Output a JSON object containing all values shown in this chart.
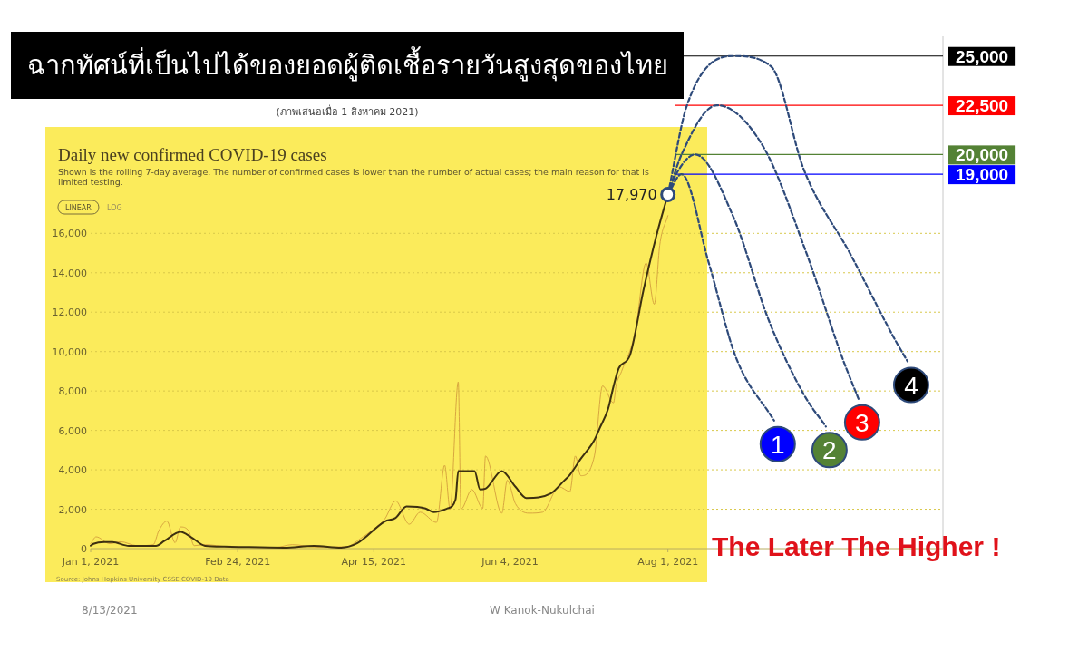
{
  "chart_data": {
    "type": "line",
    "title": "ฉากทัศน์ที่เป็นไปได้ของยอดผู้ติดเชื้อรายวันสูงสุดของไทย",
    "subtitle": "(ภาพเสนอเมื่อ 1 สิงหาคม 2021)",
    "xlim": [
      "2021-01-01",
      "2021-11-10"
    ],
    "xticks": [
      {
        "value": "2021-01-01",
        "label": "Jan 1, 2021"
      },
      {
        "value": "2021-02-24",
        "label": "Feb 24, 2021"
      },
      {
        "value": "2021-04-15",
        "label": "Apr 15, 2021"
      },
      {
        "value": "2021-06-04",
        "label": "Jun 4, 2021"
      },
      {
        "value": "2021-08-01",
        "label": "Aug 1, 2021"
      }
    ],
    "ylim": [
      0,
      26000
    ],
    "yticks": [
      0,
      {
        "value": 2000,
        "label": "2,000"
      },
      {
        "value": 4000,
        "label": "4,000"
      },
      {
        "value": 6000,
        "label": "6,000"
      },
      {
        "value": 8000,
        "label": "8,000"
      },
      {
        "value": 10000,
        "label": "10,000"
      },
      {
        "value": 12000,
        "label": "12,000"
      },
      {
        "value": 14000,
        "label": "14,000"
      },
      {
        "value": 16000,
        "label": "16,000"
      }
    ],
    "grid": "y",
    "series": [
      {
        "color": "#d8a640",
        "x": [
          "2021-01-01",
          "2021-01-03",
          "2021-01-08",
          "2021-01-12",
          "2021-01-18",
          "2021-01-24",
          "2021-01-26",
          "2021-01-29",
          "2021-02-01",
          "2021-02-03",
          "2021-02-06",
          "2021-02-08",
          "2021-02-12",
          "2021-02-20",
          "2021-03-10",
          "2021-03-16",
          "2021-03-25",
          "2021-04-05",
          "2021-04-10",
          "2021-04-15",
          "2021-04-19",
          "2021-04-23",
          "2021-04-28",
          "2021-05-02",
          "2021-05-08",
          "2021-05-11",
          "2021-05-13",
          "2021-05-16",
          "2021-05-17",
          "2021-05-21",
          "2021-05-25",
          "2021-05-26",
          "2021-06-01",
          "2021-06-03",
          "2021-06-06",
          "2021-06-11",
          "2021-06-16",
          "2021-06-22",
          "2021-06-26",
          "2021-06-28",
          "2021-06-30",
          "2021-07-05",
          "2021-07-08",
          "2021-07-12",
          "2021-07-13",
          "2021-07-15",
          "2021-07-20",
          "2021-07-24",
          "2021-07-27",
          "2021-07-29",
          "2021-08-01"
        ],
        "values": [
          250,
          600,
          250,
          350,
          150,
          200,
          900,
          1400,
          300,
          1100,
          900,
          150,
          200,
          100,
          60,
          200,
          80,
          100,
          500,
          1000,
          1500,
          2420,
          1240,
          1850,
          1330,
          4230,
          2000,
          8460,
          2000,
          3000,
          2040,
          4700,
          1800,
          3470,
          2280,
          1800,
          1850,
          3140,
          2900,
          4700,
          3700,
          4700,
          8260,
          7400,
          8300,
          9000,
          11000,
          14500,
          12400,
          15400,
          16900
        ]
      },
      {
        "color": "#3d3010",
        "x": [
          "2021-01-01",
          "2021-01-02",
          "2021-01-06",
          "2021-01-09",
          "2021-01-15",
          "2021-01-25",
          "2021-01-28",
          "2021-02-03",
          "2021-02-07",
          "2021-02-12",
          "2021-02-19",
          "2021-03-13",
          "2021-03-24",
          "2021-04-03",
          "2021-04-09",
          "2021-04-19",
          "2021-04-23",
          "2021-04-27",
          "2021-05-04",
          "2021-05-07",
          "2021-05-12",
          "2021-05-15",
          "2021-05-16",
          "2021-05-22",
          "2021-05-24",
          "2021-05-26",
          "2021-06-01",
          "2021-06-06",
          "2021-06-10",
          "2021-06-19",
          "2021-06-24",
          "2021-06-26",
          "2021-06-30",
          "2021-07-05",
          "2021-07-07",
          "2021-07-10",
          "2021-07-12",
          "2021-07-14",
          "2021-07-18",
          "2021-07-23",
          "2021-07-28",
          "2021-08-01"
        ],
        "values": [
          150,
          240,
          330,
          330,
          140,
          140,
          380,
          850,
          570,
          140,
          100,
          50,
          140,
          50,
          280,
          1380,
          1560,
          2140,
          2040,
          1850,
          2040,
          2500,
          3940,
          3940,
          3000,
          3040,
          3940,
          3140,
          2570,
          2800,
          3470,
          3750,
          4560,
          5510,
          6130,
          7080,
          8220,
          9170,
          9790,
          13100,
          16000,
          17970
        ]
      },
      {
        "name": "1",
        "color": "#2e4a7a",
        "line_style": "dashed",
        "x": [
          "2021-08-01",
          "2021-08-06",
          "2021-08-16",
          "2021-08-26",
          "2021-09-09"
        ],
        "values": [
          17970,
          19000,
          14500,
          9700,
          6500
        ]
      },
      {
        "name": "2",
        "color": "#2e4a7a",
        "line_style": "dashed",
        "x": [
          "2021-08-01",
          "2021-08-04",
          "2021-08-11",
          "2021-08-25",
          "2021-09-07",
          "2021-09-20",
          "2021-09-28"
        ],
        "values": [
          17970,
          19000,
          20000,
          16850,
          11600,
          7800,
          6200
        ]
      },
      {
        "name": "3",
        "color": "#2e4a7a",
        "line_style": "dashed",
        "x": [
          "2021-08-01",
          "2021-08-06",
          "2021-08-19",
          "2021-09-05",
          "2021-09-21",
          "2021-10-04",
          "2021-10-10"
        ],
        "values": [
          17970,
          20000,
          22500,
          20400,
          14950,
          9700,
          7600
        ]
      },
      {
        "name": "4",
        "color": "#2e4a7a",
        "line_style": "dashed",
        "x": [
          "2021-08-01",
          "2021-08-08",
          "2021-08-25",
          "2021-09-08",
          "2021-09-20",
          "2021-10-07",
          "2021-10-23",
          "2021-10-28"
        ],
        "values": [
          17970,
          22500,
          25000,
          24450,
          19200,
          14950,
          10700,
          9500
        ]
      }
    ],
    "ref_lines": [
      {
        "axis": "y",
        "value": 19000,
        "label": "19,000",
        "color": "#0000ff"
      },
      {
        "axis": "y",
        "value": 20000,
        "label": "20,000",
        "color": "#548235"
      },
      {
        "axis": "y",
        "value": 22500,
        "label": "22,500",
        "color": "#ff0000"
      },
      {
        "axis": "y",
        "value": 25000,
        "label": "25,000",
        "color": "#000000"
      }
    ],
    "annotations": [
      "Daily new confirmed COVID-19 cases",
      "Shown is the rolling 7-day average. The number of confirmed cases is lower than the number of actual cases; the main reason for that is limited testing.",
      "LINEAR",
      "LOG",
      "Source: Johns Hopkins University CSSE COVID-19 Data",
      "8/13/2021",
      "W Kanok-Nukulchai",
      "The Later The Higher !",
      {
        "text": "17,970",
        "x": "2021-08-01",
        "y": 17970
      }
    ]
  }
}
